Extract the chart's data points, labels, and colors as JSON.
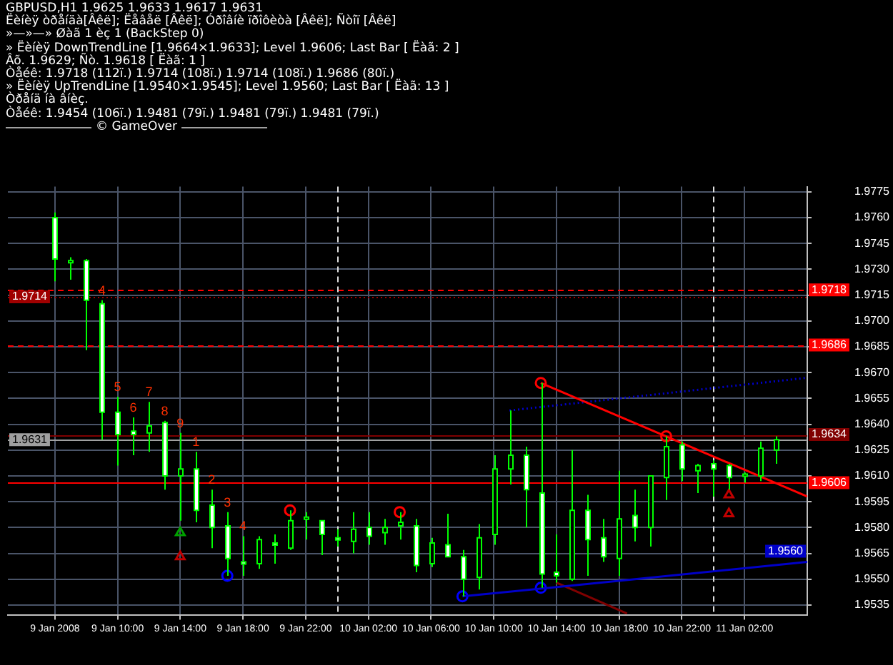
{
  "chart_data": {
    "type": "candlestick",
    "title": "GBPUSD,H1  1.9625 1.9633 1.9617 1.9631",
    "annotations": [
      "Ëèíèÿ òðåíäà[Âêë]; Ëåâåë [Âêë]; Óðîâíè ïðîôèòà [Âêë]; Ñòîï [Âêë]",
      "»—»—» Øàã 1 èç 1 (BackStep 0)",
      "» Ëèíèÿ DownTrendLine [1.9664×1.9633]; Level 1.9606; Last Bar [ Ëàã: 2 ]",
      "Âõ. 1.9629; Ñò. 1.9618 [ Ëàã: 1 ]",
      "Òåéê: 1.9718 (112ï.) 1.9714 (108ï.) 1.9714 (108ï.) 1.9686 (80ï.)",
      "» Ëèíèÿ UpTrendLine [1.9540×1.9545]; Level 1.9560; Last Bar [ Ëàã: 13 ]",
      "Òðåíä íà âíèç.",
      "Òåéê: 1.9454 (106ï.) 1.9481 (79ï.) 1.9481 (79ï.) 1.9481 (79ï.)",
      "© GameOver",
      {
        "text": "1.9560",
        "x": "2008-01-11T06:00",
        "y": 1.956
      },
      {
        "text": "4",
        "x": "2008-01-09T09:00",
        "y": 1.9712
      },
      {
        "text": "5",
        "x": "2008-01-09T10:00",
        "y": 1.9656
      },
      {
        "text": "6",
        "x": "2008-01-09T11:00",
        "y": 1.9644
      },
      {
        "text": "7",
        "x": "2008-01-09T12:00",
        "y": 1.9653
      },
      {
        "text": "8",
        "x": "2008-01-09T13:00",
        "y": 1.9642
      },
      {
        "text": "9",
        "x": "2008-01-09T14:00",
        "y": 1.9635
      },
      {
        "text": "1",
        "x": "2008-01-09T15:00",
        "y": 1.9624
      },
      {
        "text": "2",
        "x": "2008-01-09T16:00",
        "y": 1.9602
      },
      {
        "text": "3",
        "x": "2008-01-09T17:00",
        "y": 1.9589
      },
      {
        "text": "4",
        "x": "2008-01-09T18:00",
        "y": 1.9575
      }
    ],
    "x": [
      "2008-01-09T06:00",
      "2008-01-09T07:00",
      "2008-01-09T08:00",
      "2008-01-09T09:00",
      "2008-01-09T10:00",
      "2008-01-09T11:00",
      "2008-01-09T12:00",
      "2008-01-09T13:00",
      "2008-01-09T14:00",
      "2008-01-09T15:00",
      "2008-01-09T16:00",
      "2008-01-09T17:00",
      "2008-01-09T18:00",
      "2008-01-09T19:00",
      "2008-01-09T20:00",
      "2008-01-09T21:00",
      "2008-01-09T22:00",
      "2008-01-09T23:00",
      "2008-01-10T00:00",
      "2008-01-10T01:00",
      "2008-01-10T02:00",
      "2008-01-10T03:00",
      "2008-01-10T04:00",
      "2008-01-10T05:00",
      "2008-01-10T06:00",
      "2008-01-10T07:00",
      "2008-01-10T08:00",
      "2008-01-10T09:00",
      "2008-01-10T10:00",
      "2008-01-10T11:00",
      "2008-01-10T12:00",
      "2008-01-10T13:00",
      "2008-01-10T14:00",
      "2008-01-10T15:00",
      "2008-01-10T16:00",
      "2008-01-10T17:00",
      "2008-01-10T18:00",
      "2008-01-10T19:00",
      "2008-01-10T20:00",
      "2008-01-10T21:00",
      "2008-01-10T22:00",
      "2008-01-10T23:00",
      "2008-01-11T00:00",
      "2008-01-11T01:00",
      "2008-01-11T02:00",
      "2008-01-11T03:00",
      "2008-01-11T04:00"
    ],
    "ohlc": [
      [
        1.976,
        1.9763,
        1.9723,
        1.9736
      ],
      [
        1.9734,
        1.9737,
        1.9724,
        1.9735
      ],
      [
        1.9735,
        1.9736,
        1.9683,
        1.9712
      ],
      [
        1.971,
        1.9712,
        1.9631,
        1.9647
      ],
      [
        1.9647,
        1.9656,
        1.9616,
        1.9634
      ],
      [
        1.9636,
        1.9644,
        1.9622,
        1.9634
      ],
      [
        1.9635,
        1.9653,
        1.9624,
        1.9639
      ],
      [
        1.9641,
        1.9642,
        1.9602,
        1.961
      ],
      [
        1.961,
        1.9635,
        1.9584,
        1.9614
      ],
      [
        1.9614,
        1.9624,
        1.9583,
        1.959
      ],
      [
        1.9593,
        1.9602,
        1.9568,
        1.958
      ],
      [
        1.9581,
        1.9589,
        1.9552,
        1.9562
      ],
      [
        1.956,
        1.9575,
        1.9552,
        1.9559
      ],
      [
        1.9559,
        1.9575,
        1.9556,
        1.9573
      ],
      [
        1.9571,
        1.9576,
        1.9559,
        1.957
      ],
      [
        1.9568,
        1.959,
        1.9567,
        1.9584
      ],
      [
        1.9585,
        1.9589,
        1.9573,
        1.9586
      ],
      [
        1.9584,
        1.9584,
        1.9564,
        1.9576
      ],
      [
        1.9574,
        1.9579,
        1.9569,
        1.9573
      ],
      [
        1.9572,
        1.9589,
        1.9565,
        1.9579
      ],
      [
        1.958,
        1.9589,
        1.957,
        1.9575
      ],
      [
        1.9577,
        1.9585,
        1.957,
        1.958
      ],
      [
        1.9581,
        1.9589,
        1.9573,
        1.9583
      ],
      [
        1.9581,
        1.9585,
        1.9554,
        1.9558
      ],
      [
        1.9559,
        1.9574,
        1.9557,
        1.9571
      ],
      [
        1.957,
        1.9588,
        1.9563,
        1.9563
      ],
      [
        1.9563,
        1.9567,
        1.954,
        1.955
      ],
      [
        1.9551,
        1.9582,
        1.9544,
        1.9574
      ],
      [
        1.9576,
        1.9622,
        1.957,
        1.9614
      ],
      [
        1.9614,
        1.9648,
        1.9605,
        1.9622
      ],
      [
        1.9622,
        1.9627,
        1.958,
        1.9602
      ],
      [
        1.96,
        1.9664,
        1.9545,
        1.9553
      ],
      [
        1.9554,
        1.9576,
        1.9548,
        1.9552
      ],
      [
        1.955,
        1.9625,
        1.9549,
        1.959
      ],
      [
        1.959,
        1.9599,
        1.9552,
        1.9573
      ],
      [
        1.9574,
        1.9585,
        1.956,
        1.9563
      ],
      [
        1.9562,
        1.9613,
        1.9552,
        1.9585
      ],
      [
        1.9587,
        1.9602,
        1.9572,
        1.958
      ],
      [
        1.958,
        1.961,
        1.9569,
        1.961
      ],
      [
        1.9609,
        1.9633,
        1.9596,
        1.9627
      ],
      [
        1.9628,
        1.963,
        1.9607,
        1.9614
      ],
      [
        1.9613,
        1.9617,
        1.96,
        1.9616
      ],
      [
        1.9617,
        1.9619,
        1.9598,
        1.9614
      ],
      [
        1.9616,
        1.9617,
        1.9602,
        1.9609
      ],
      [
        1.961,
        1.9612,
        1.9606,
        1.9611
      ],
      [
        1.961,
        1.963,
        1.9607,
        1.9626
      ],
      [
        1.9625,
        1.9633,
        1.9617,
        1.9631
      ]
    ],
    "color": "#00ff00",
    "colors": [
      "#ffffff",
      "#000000",
      "#ffffff",
      "#ffffff",
      "#ffffff",
      "#ffffff",
      "#000000",
      "#ffffff",
      "#000000",
      "#ffffff",
      "#ffffff",
      "#ffffff",
      "#ffffff",
      "#000000",
      "#ffffff",
      "#000000",
      "#000000",
      "#ffffff",
      "#ffffff",
      "#000000",
      "#ffffff",
      "#000000",
      "#000000",
      "#ffffff",
      "#000000",
      "#ffffff",
      "#ffffff",
      "#000000",
      "#000000",
      "#000000",
      "#ffffff",
      "#ffffff",
      "#ffffff",
      "#000000",
      "#ffffff",
      "#ffffff",
      "#000000",
      "#ffffff",
      "#000000",
      "#000000",
      "#ffffff",
      "#000000",
      "#ffffff",
      "#ffffff",
      "#000000",
      "#000000",
      "#000000"
    ],
    "series": [
      {
        "type": "line",
        "x": [
          "2008-01-10T13:00",
          "2008-01-11T06:00"
        ],
        "values": [
          1.9664,
          1.9598
        ],
        "color": "#ff0000"
      },
      {
        "type": "line",
        "x": [
          "2008-01-10T08:00",
          "2008-01-11T06:00"
        ],
        "values": [
          1.954,
          1.956
        ],
        "color": "#0000c8"
      },
      {
        "type": "line",
        "x": [
          "2008-01-10T11:00",
          "2008-01-11T06:00"
        ],
        "values": [
          1.9648,
          1.9667
        ],
        "color": "#0000c8",
        "line_style": "dotted"
      },
      {
        "type": "line",
        "x": [
          "2008-01-10T14:00",
          "2008-01-10T18:30"
        ],
        "values": [
          1.9548,
          1.953
        ],
        "color": "#800000"
      },
      {
        "type": "scatter",
        "x": [
          "2008-01-09T21:00",
          "2008-01-10T04:00",
          "2008-01-10T13:00",
          "2008-01-10T21:00"
        ],
        "values": [
          1.959,
          1.9589,
          1.9664,
          1.9633
        ],
        "color": "#ff0000",
        "marker": "circle"
      },
      {
        "type": "scatter",
        "x": [
          "2008-01-09T17:00",
          "2008-01-10T08:00",
          "2008-01-10T13:00"
        ],
        "values": [
          1.9552,
          1.954,
          1.9545
        ],
        "color": "#0000ff",
        "marker": "circle"
      },
      {
        "type": "scatter",
        "x": [
          "2008-01-09T14:00"
        ],
        "values": [
          1.9577
        ],
        "color": "#00a000",
        "marker": "triangle"
      },
      {
        "type": "scatter",
        "x": [
          "2008-01-09T14:00",
          "2008-01-11T01:00",
          "2008-01-11T01:00"
        ],
        "values": [
          1.9563,
          1.9599,
          1.9588
        ],
        "color": "#c00000",
        "marker": "triangle"
      }
    ],
    "ref_lines": [
      {
        "axis": "y",
        "value": 1.9718,
        "label": "1.9718",
        "color": "#ff0000",
        "line_style": "dashed"
      },
      {
        "axis": "y",
        "value": 1.9714,
        "label": "1.9714",
        "color": "#a00000",
        "line_style": "dotted"
      },
      {
        "axis": "y",
        "value": 1.9686,
        "label": "1.9686",
        "color": "#ff0000",
        "line_style": "dashed"
      },
      {
        "axis": "y",
        "value": 1.9634,
        "label": "1.9634",
        "color": "#800000"
      },
      {
        "axis": "y",
        "value": 1.9631,
        "label": "1.9631",
        "color": "#a0a0a0"
      },
      {
        "axis": "y",
        "value": 1.9606,
        "label": "1.9606",
        "color": "#ff0000"
      },
      {
        "axis": "x",
        "value": "2008-01-10T00:00",
        "color": "#e0e0e0",
        "line_style": "dashed"
      },
      {
        "axis": "x",
        "value": "2008-01-11T00:00",
        "color": "#e0e0e0",
        "line_style": "dashed"
      }
    ],
    "xlim": [
      "2008-01-09T03:00",
      "2008-01-11T06:00"
    ],
    "ylim": [
      1.9529,
      1.9778
    ],
    "xticks": [
      {
        "value": "2008-01-09T06:00",
        "label": "9 Jan 2008"
      },
      {
        "value": "2008-01-09T10:00",
        "label": "9 Jan 10:00"
      },
      {
        "value": "2008-01-09T14:00",
        "label": "9 Jan 14:00"
      },
      {
        "value": "2008-01-09T18:00",
        "label": "9 Jan 18:00"
      },
      {
        "value": "2008-01-09T22:00",
        "label": "9 Jan 22:00"
      },
      {
        "value": "2008-01-10T02:00",
        "label": "10 Jan 02:00"
      },
      {
        "value": "2008-01-10T06:00",
        "label": "10 Jan 06:00"
      },
      {
        "value": "2008-01-10T10:00",
        "label": "10 Jan 10:00"
      },
      {
        "value": "2008-01-10T14:00",
        "label": "10 Jan 14:00"
      },
      {
        "value": "2008-01-10T18:00",
        "label": "10 Jan 18:00"
      },
      {
        "value": "2008-01-10T22:00",
        "label": "10 Jan 22:00"
      },
      {
        "value": "2008-01-11T02:00",
        "label": "11 Jan 02:00"
      }
    ],
    "yticks": [
      {
        "value": 1.9535,
        "label": "1.9535"
      },
      {
        "value": 1.955,
        "label": "1.9550"
      },
      {
        "value": 1.9565,
        "label": "1.9565"
      },
      {
        "value": 1.958,
        "label": "1.9580"
      },
      {
        "value": 1.9595,
        "label": "1.9595"
      },
      {
        "value": 1.961,
        "label": "1.9610"
      },
      {
        "value": 1.9625,
        "label": "1.9625"
      },
      {
        "value": 1.964,
        "label": "1.9640"
      },
      {
        "value": 1.9655,
        "label": "1.9655"
      },
      {
        "value": 1.967,
        "label": "1.9670"
      },
      {
        "value": 1.9685,
        "label": "1.9685"
      },
      {
        "value": 1.97,
        "label": "1.9700"
      },
      {
        "value": 1.9715,
        "label": "1.9715"
      },
      {
        "value": 1.973,
        "label": "1.9730"
      },
      {
        "value": 1.9745,
        "label": "1.9745"
      },
      {
        "value": 1.976,
        "label": "1.9760"
      },
      {
        "value": 1.9775,
        "label": "1.9775"
      }
    ],
    "grid": true
  }
}
